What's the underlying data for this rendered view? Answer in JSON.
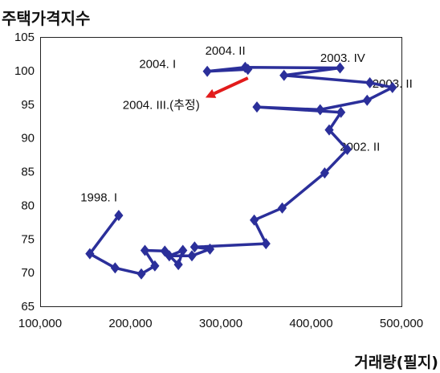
{
  "chart_data": {
    "type": "line",
    "ylabel": "주택가격지수",
    "xlabel": "거래량(필지)",
    "xlim": [
      100000,
      500000
    ],
    "ylim": [
      65,
      105
    ],
    "x_ticks": [
      100000,
      200000,
      300000,
      400000,
      500000
    ],
    "x_tick_labels": [
      "100,000",
      "200,000",
      "300,000",
      "400,000",
      "500,000"
    ],
    "y_ticks": [
      65,
      70,
      75,
      80,
      85,
      90,
      95,
      100,
      105
    ],
    "y_tick_labels": [
      "65",
      "70",
      "75",
      "80",
      "85",
      "90",
      "95",
      "100",
      "105"
    ],
    "grid": false,
    "series": [
      {
        "color": "#2b2f9a",
        "points": [
          [
            187000,
            78.5
          ],
          [
            155000,
            72.8
          ],
          [
            183000,
            70.7
          ],
          [
            212000,
            69.8
          ],
          [
            227000,
            71.0
          ],
          [
            216000,
            73.3
          ],
          [
            238000,
            73.2
          ],
          [
            253000,
            71.2
          ],
          [
            258000,
            73.3
          ],
          [
            243000,
            72.5
          ],
          [
            268000,
            72.5
          ],
          [
            288000,
            73.5
          ],
          [
            271000,
            73.8
          ],
          [
            350000,
            74.3
          ],
          [
            337000,
            77.8
          ],
          [
            368000,
            79.6
          ],
          [
            415000,
            84.8
          ],
          [
            440000,
            88.3
          ],
          [
            420000,
            91.2
          ],
          [
            433000,
            93.8
          ],
          [
            340000,
            94.6
          ],
          [
            410000,
            94.2
          ],
          [
            462000,
            95.6
          ],
          [
            490000,
            97.5
          ],
          [
            465000,
            98.2
          ],
          [
            370000,
            99.3
          ],
          [
            432000,
            100.4
          ],
          [
            327000,
            100.5
          ],
          [
            285000,
            99.9
          ],
          [
            330000,
            100.2
          ]
        ]
      },
      {
        "color": "#e21b1b",
        "points": [
          [
            330000,
            98.9
          ],
          [
            283000,
            96.0
          ]
        ]
      }
    ],
    "annotations": [
      {
        "text": "1998. I",
        "x": 165000,
        "y": 80.6
      },
      {
        "text": "2002. II",
        "x": 454000,
        "y": 88.1
      },
      {
        "text": "2003. II",
        "x": 490000,
        "y": 97.5
      },
      {
        "text": "2003. IV",
        "x": 435000,
        "y": 101.3
      },
      {
        "text": "2004. II",
        "x": 305000,
        "y": 102.4
      },
      {
        "text": "2004. I",
        "x": 230000,
        "y": 100.4
      },
      {
        "text": "2004. III.(추정)",
        "x": 234000,
        "y": 94.3
      }
    ]
  }
}
